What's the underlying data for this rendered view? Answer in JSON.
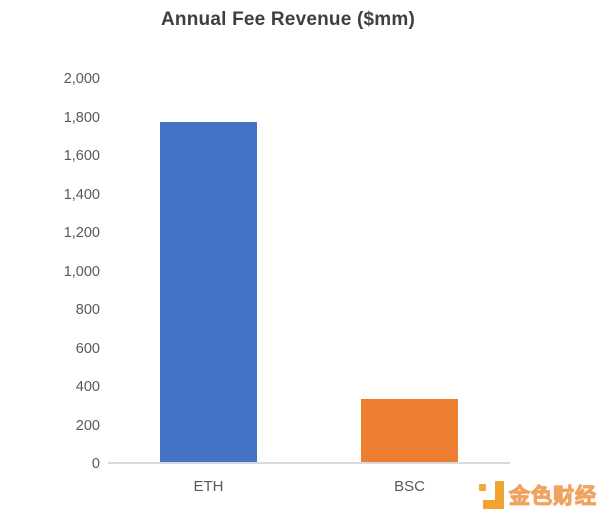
{
  "chart_data": {
    "type": "bar",
    "title": "Annual Fee Revenue ($mm)",
    "categories": [
      "ETH",
      "BSC"
    ],
    "values": [
      1770,
      330
    ],
    "bar_colors": [
      "#4472C4",
      "#ED7D31"
    ],
    "ylim": [
      0,
      2000
    ],
    "ytick_step": 200,
    "ytick_labels": [
      "0",
      "200",
      "400",
      "600",
      "800",
      "1,000",
      "1,200",
      "1,400",
      "1,600",
      "1,800",
      "2,000"
    ],
    "xlabel": "",
    "ylabel": "",
    "grid": false,
    "legend": false
  },
  "watermark": {
    "text": "金色财经",
    "logo": "jinse-caijing-logo",
    "logo_color": "#F1A331",
    "logo_accent_color": "#F2A63C",
    "text_fill": "#FAF3EA",
    "text_outline": "#F0A35E"
  },
  "colors": {
    "title": "#3F3F3F",
    "axis_labels": "#595959",
    "axis_line": "#D9D9D9",
    "background": "#FFFFFF"
  }
}
